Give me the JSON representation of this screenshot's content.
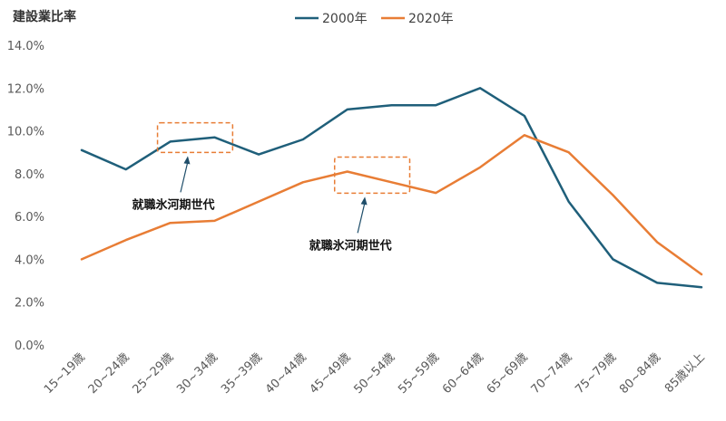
{
  "chart_data": {
    "type": "line",
    "title": "",
    "ylabel": "建設業比率",
    "xlabel": "",
    "ylim": [
      0,
      14
    ],
    "yticks": [
      "0.0%",
      "2.0%",
      "4.0%",
      "6.0%",
      "8.0%",
      "10.0%",
      "12.0%",
      "14.0%"
    ],
    "grid": false,
    "legend_position": "top",
    "categories": [
      "15~19歳",
      "20~24歳",
      "25~29歳",
      "30~34歳",
      "35~39歳",
      "40~44歳",
      "45~49歳",
      "50~54歳",
      "55~59歳",
      "60~64歳",
      "65~69歳",
      "70~74歳",
      "75~79歳",
      "80~84歳",
      "85歳以上"
    ],
    "series": [
      {
        "name": "2000年",
        "color": "#1f5f7a",
        "values": [
          9.1,
          8.2,
          9.5,
          9.7,
          8.9,
          9.6,
          11.0,
          11.2,
          11.2,
          12.0,
          10.7,
          6.7,
          4.0,
          2.9,
          2.7
        ]
      },
      {
        "name": "2020年",
        "color": "#e87d35",
        "values": [
          4.0,
          4.9,
          5.7,
          5.8,
          6.7,
          7.6,
          8.1,
          7.6,
          7.1,
          8.3,
          9.8,
          9.0,
          7.0,
          4.8,
          3.3
        ]
      }
    ],
    "annotations": [
      {
        "text": "就職氷河期世代",
        "series": 0,
        "categories": [
          2,
          3
        ]
      },
      {
        "text": "就職氷河期世代",
        "series": 1,
        "categories": [
          6,
          7
        ]
      }
    ]
  }
}
